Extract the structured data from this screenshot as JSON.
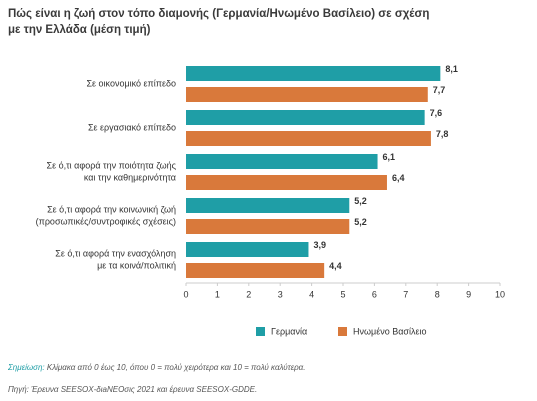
{
  "chart_data": {
    "type": "bar",
    "orientation": "horizontal",
    "title": [
      "Πώς είναι η ζωή στον τόπο διαμονής (Γερμανία/Ηνωμένο Βασίλειο) σε σχέση",
      "με την Ελλάδα (μέση τιμή)"
    ],
    "categories": [
      [
        "Σε οικονομικό επίπεδο"
      ],
      [
        "Σε εργασιακό επίπεδο"
      ],
      [
        "Σε ό,τι αφορά την ποιότητα ζωής",
        "και την καθημερινότητα"
      ],
      [
        "Σε ό,τι αφορά την κοινωνική ζωή",
        "(προσωπικές/συντροφικές σχέσεις)"
      ],
      [
        "Σε ό,τι αφορά την ενασχόληση",
        "με τα κοινά/πολιτική"
      ]
    ],
    "series": [
      {
        "name": "Γερμανία",
        "color": "#1f9ea6",
        "values": [
          8.1,
          7.6,
          6.1,
          5.2,
          3.9
        ],
        "value_labels": [
          "8,1",
          "7,6",
          "6,1",
          "5,2",
          "3,9"
        ]
      },
      {
        "name": "Ηνωμένο Βασίλειο",
        "color": "#d9793b",
        "values": [
          7.7,
          7.8,
          6.4,
          5.2,
          4.4
        ],
        "value_labels": [
          "7,7",
          "7,8",
          "6,4",
          "5,2",
          "4,4"
        ]
      }
    ],
    "xlim": [
      0,
      10
    ],
    "xticks": [
      0,
      1,
      2,
      3,
      4,
      5,
      6,
      7,
      8,
      9,
      10
    ],
    "legend": "bottom",
    "note_label": "Σημείωση:",
    "note": "Κλίμακα από 0 έως 10, όπου 0 = πολύ χειρότερα και 10 = πολύ καλύτερα.",
    "source": "Πηγή: Έρευνα SEESOX-διaNEOσις 2021 και έρευνα SEESOX-GDDE."
  }
}
